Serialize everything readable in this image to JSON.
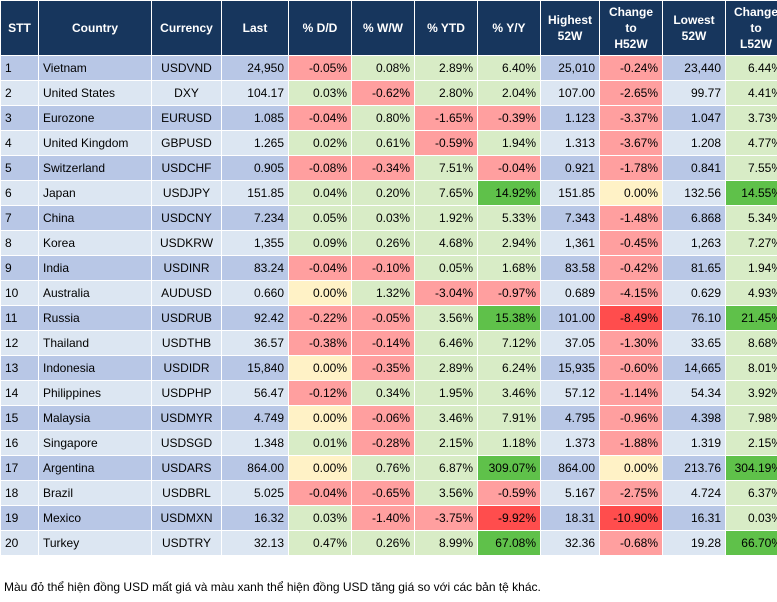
{
  "headers": {
    "stt": "STT",
    "country": "Country",
    "currency": "Currency",
    "last": "Last",
    "dd": "% D/D",
    "ww": "% W/W",
    "ytd": "% YTD",
    "yy": "% Y/Y",
    "high52_line1": "Highest",
    "high52_line2": "52W",
    "chh52_line1": "Change",
    "chh52_line2": "to",
    "chh52_line3": "H52W",
    "low52_line1": "Lowest",
    "low52_line2": "52W",
    "chl52_line1": "Change",
    "chl52_line2": "to",
    "chl52_line3": "L52W"
  },
  "rows": [
    {
      "stt": "1",
      "country": "Vietnam",
      "currency": "USDVND",
      "last": "24,950",
      "dd": "-0.05%",
      "ww": "0.08%",
      "ytd": "2.89%",
      "yy": "6.40%",
      "high": "25,010",
      "chh": "-0.24%",
      "low": "23,440",
      "chl": "6.44%"
    },
    {
      "stt": "2",
      "country": "United States",
      "currency": "DXY",
      "last": "104.17",
      "dd": "0.03%",
      "ww": "-0.62%",
      "ytd": "2.80%",
      "yy": "2.04%",
      "high": "107.00",
      "chh": "-2.65%",
      "low": "99.77",
      "chl": "4.41%"
    },
    {
      "stt": "3",
      "country": "Eurozone",
      "currency": "EURUSD",
      "last": "1.085",
      "dd": "-0.04%",
      "ww": "0.80%",
      "ytd": "-1.65%",
      "yy": "-0.39%",
      "high": "1.123",
      "chh": "-3.37%",
      "low": "1.047",
      "chl": "3.73%"
    },
    {
      "stt": "4",
      "country": "United Kingdom",
      "currency": "GBPUSD",
      "last": "1.265",
      "dd": "0.02%",
      "ww": "0.61%",
      "ytd": "-0.59%",
      "yy": "1.94%",
      "high": "1.313",
      "chh": "-3.67%",
      "low": "1.208",
      "chl": "4.77%"
    },
    {
      "stt": "5",
      "country": "Switzerland",
      "currency": "USDCHF",
      "last": "0.905",
      "dd": "-0.08%",
      "ww": "-0.34%",
      "ytd": "7.51%",
      "yy": "-0.04%",
      "high": "0.921",
      "chh": "-1.78%",
      "low": "0.841",
      "chl": "7.55%"
    },
    {
      "stt": "6",
      "country": "Japan",
      "currency": "USDJPY",
      "last": "151.85",
      "dd": "0.04%",
      "ww": "0.20%",
      "ytd": "7.65%",
      "yy": "14.92%",
      "high": "151.85",
      "chh": "0.00%",
      "low": "132.56",
      "chl": "14.55%"
    },
    {
      "stt": "7",
      "country": "China",
      "currency": "USDCNY",
      "last": "7.234",
      "dd": "0.05%",
      "ww": "0.03%",
      "ytd": "1.92%",
      "yy": "5.33%",
      "high": "7.343",
      "chh": "-1.48%",
      "low": "6.868",
      "chl": "5.34%"
    },
    {
      "stt": "8",
      "country": "Korea",
      "currency": "USDKRW",
      "last": "1,355",
      "dd": "0.09%",
      "ww": "0.26%",
      "ytd": "4.68%",
      "yy": "2.94%",
      "high": "1,361",
      "chh": "-0.45%",
      "low": "1,263",
      "chl": "7.27%"
    },
    {
      "stt": "9",
      "country": "India",
      "currency": "USDINR",
      "last": "83.24",
      "dd": "-0.04%",
      "ww": "-0.10%",
      "ytd": "0.05%",
      "yy": "1.68%",
      "high": "83.58",
      "chh": "-0.42%",
      "low": "81.65",
      "chl": "1.94%"
    },
    {
      "stt": "10",
      "country": "Australia",
      "currency": "AUDUSD",
      "last": "0.660",
      "dd": "0.00%",
      "ww": "1.32%",
      "ytd": "-3.04%",
      "yy": "-0.97%",
      "high": "0.689",
      "chh": "-4.15%",
      "low": "0.629",
      "chl": "4.93%"
    },
    {
      "stt": "11",
      "country": "Russia",
      "currency": "USDRUB",
      "last": "92.42",
      "dd": "-0.22%",
      "ww": "-0.05%",
      "ytd": "3.56%",
      "yy": "15.38%",
      "high": "101.00",
      "chh": "-8.49%",
      "low": "76.10",
      "chl": "21.45%"
    },
    {
      "stt": "12",
      "country": "Thailand",
      "currency": "USDTHB",
      "last": "36.57",
      "dd": "-0.38%",
      "ww": "-0.14%",
      "ytd": "6.46%",
      "yy": "7.12%",
      "high": "37.05",
      "chh": "-1.30%",
      "low": "33.65",
      "chl": "8.68%"
    },
    {
      "stt": "13",
      "country": "Indonesia",
      "currency": "USDIDR",
      "last": "15,840",
      "dd": "0.00%",
      "ww": "-0.35%",
      "ytd": "2.89%",
      "yy": "6.24%",
      "high": "15,935",
      "chh": "-0.60%",
      "low": "14,665",
      "chl": "8.01%"
    },
    {
      "stt": "14",
      "country": "Philippines",
      "currency": "USDPHP",
      "last": "56.47",
      "dd": "-0.12%",
      "ww": "0.34%",
      "ytd": "1.95%",
      "yy": "3.46%",
      "high": "57.12",
      "chh": "-1.14%",
      "low": "54.34",
      "chl": "3.92%"
    },
    {
      "stt": "15",
      "country": "Malaysia",
      "currency": "USDMYR",
      "last": "4.749",
      "dd": "0.00%",
      "ww": "-0.06%",
      "ytd": "3.46%",
      "yy": "7.91%",
      "high": "4.795",
      "chh": "-0.96%",
      "low": "4.398",
      "chl": "7.98%"
    },
    {
      "stt": "16",
      "country": "Singapore",
      "currency": "USDSGD",
      "last": "1.348",
      "dd": "0.01%",
      "ww": "-0.28%",
      "ytd": "2.15%",
      "yy": "1.18%",
      "high": "1.373",
      "chh": "-1.88%",
      "low": "1.319",
      "chl": "2.15%"
    },
    {
      "stt": "17",
      "country": "Argentina",
      "currency": "USDARS",
      "last": "864.00",
      "dd": "0.00%",
      "ww": "0.76%",
      "ytd": "6.87%",
      "yy": "309.07%",
      "high": "864.00",
      "chh": "0.00%",
      "low": "213.76",
      "chl": "304.19%"
    },
    {
      "stt": "18",
      "country": "Brazil",
      "currency": "USDBRL",
      "last": "5.025",
      "dd": "-0.04%",
      "ww": "-0.65%",
      "ytd": "3.56%",
      "yy": "-0.59%",
      "high": "5.167",
      "chh": "-2.75%",
      "low": "4.724",
      "chl": "6.37%"
    },
    {
      "stt": "19",
      "country": "Mexico",
      "currency": "USDMXN",
      "last": "16.32",
      "dd": "0.03%",
      "ww": "-1.40%",
      "ytd": "-3.75%",
      "yy": "-9.92%",
      "high": "18.31",
      "chh": "-10.90%",
      "low": "16.31",
      "chl": "0.03%"
    },
    {
      "stt": "20",
      "country": "Turkey",
      "currency": "USDTRY",
      "last": "32.13",
      "dd": "0.47%",
      "ww": "0.26%",
      "ytd": "8.99%",
      "yy": "67.08%",
      "high": "32.36",
      "chh": "-0.68%",
      "low": "19.28",
      "chl": "66.70%"
    }
  ],
  "colors": {
    "header_bg": "#17365d",
    "row_odd": "#b8c7e6",
    "row_even": "#dce6f2",
    "negative": "#ff9f9f",
    "positive": "#d8ecc6",
    "neutral": "#fff2c6",
    "negative_strong": "#ff4d4d",
    "positive_strong": "#5fc14a"
  },
  "footnote": "Màu đỏ thể hiện đồng USD mất giá và màu xanh thể hiện đồng USD tăng giá so với các bản tệ khác."
}
